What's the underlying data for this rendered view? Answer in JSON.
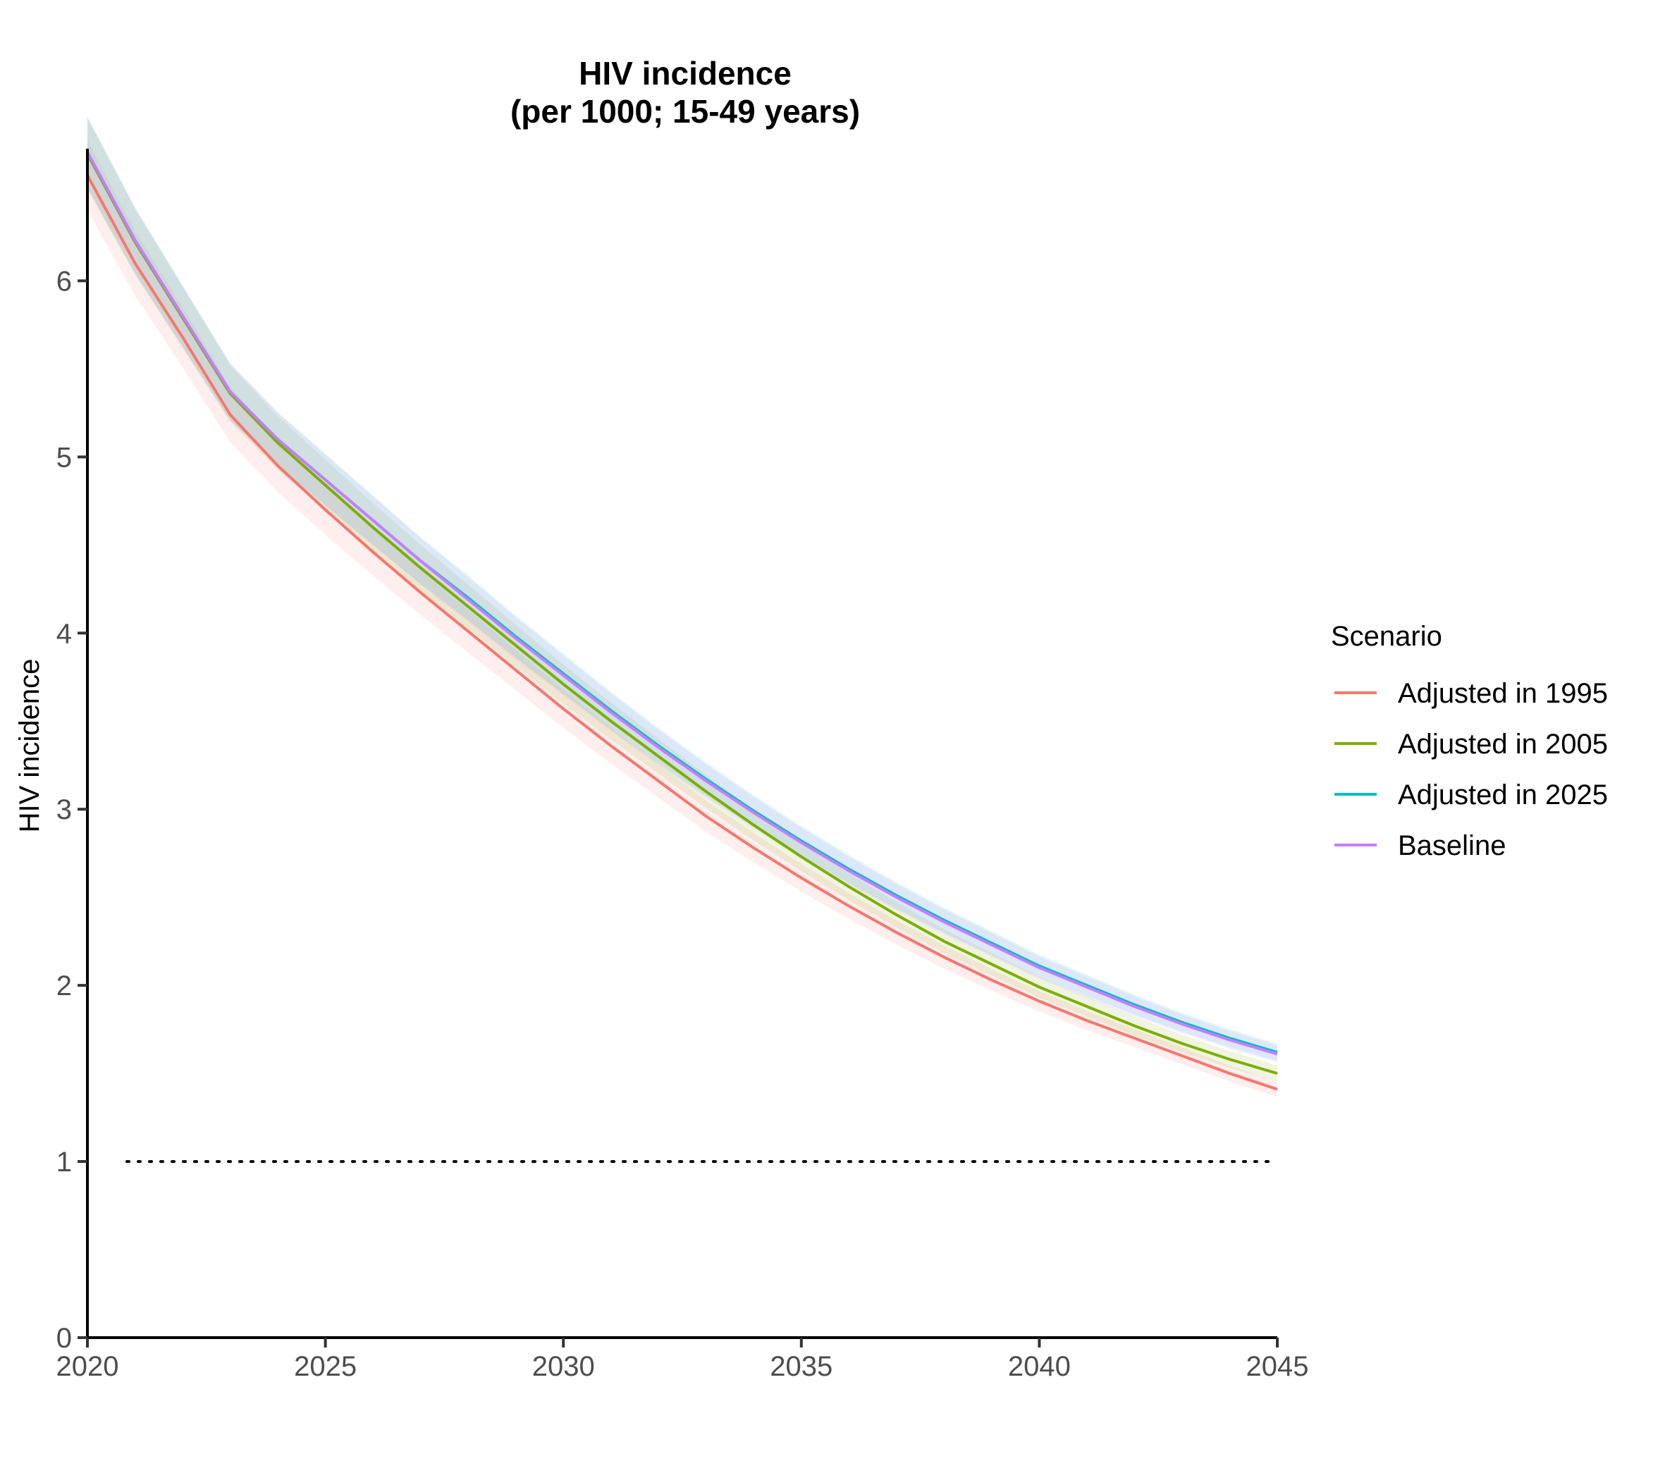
{
  "chart_data": {
    "type": "line",
    "title": "HIV incidence",
    "subtitle": "(per 1000; 15-49 years)",
    "xlabel": "",
    "ylabel": "HIV incidence",
    "xlim": [
      2020,
      2045
    ],
    "ylim": [
      0,
      6.75
    ],
    "x_ticks": [
      2020,
      2025,
      2030,
      2035,
      2040,
      2045
    ],
    "y_ticks": [
      0,
      1,
      2,
      3,
      4,
      5,
      6
    ],
    "grid": false,
    "reference_line": {
      "y": 1,
      "style": "dotted"
    },
    "legend": {
      "title": "Scenario",
      "position": "right"
    },
    "x": [
      2020,
      2021,
      2022,
      2023,
      2024,
      2025,
      2026,
      2027,
      2028,
      2029,
      2030,
      2031,
      2032,
      2033,
      2034,
      2035,
      2036,
      2037,
      2038,
      2039,
      2040,
      2041,
      2042,
      2043,
      2044,
      2045
    ],
    "series": [
      {
        "name": "Adjusted in 1995",
        "color": "#F8766D",
        "values": [
          6.6,
          6.1,
          5.68,
          5.24,
          4.95,
          4.7,
          4.46,
          4.23,
          4.01,
          3.79,
          3.57,
          3.36,
          3.16,
          2.96,
          2.78,
          2.61,
          2.45,
          2.3,
          2.16,
          2.03,
          1.91,
          1.8,
          1.7,
          1.6,
          1.5,
          1.41
        ]
      },
      {
        "name": "Adjusted in 2005",
        "color": "#7CAE00",
        "values": [
          6.72,
          6.22,
          5.79,
          5.36,
          5.08,
          4.84,
          4.6,
          4.37,
          4.15,
          3.93,
          3.71,
          3.5,
          3.3,
          3.1,
          2.91,
          2.73,
          2.56,
          2.4,
          2.25,
          2.12,
          1.99,
          1.88,
          1.77,
          1.67,
          1.58,
          1.5
        ]
      },
      {
        "name": "Adjusted in 2025",
        "color": "#00BFC4",
        "values": [
          6.73,
          6.23,
          5.8,
          5.37,
          5.1,
          4.87,
          4.64,
          4.41,
          4.2,
          3.98,
          3.77,
          3.56,
          3.36,
          3.17,
          2.99,
          2.82,
          2.66,
          2.51,
          2.37,
          2.24,
          2.11,
          2.0,
          1.89,
          1.79,
          1.7,
          1.62
        ]
      },
      {
        "name": "Baseline",
        "color": "#C77CFF",
        "values": [
          6.73,
          6.23,
          5.8,
          5.37,
          5.1,
          4.87,
          4.64,
          4.41,
          4.19,
          3.97,
          3.76,
          3.55,
          3.35,
          3.16,
          2.98,
          2.81,
          2.65,
          2.5,
          2.36,
          2.23,
          2.1,
          1.99,
          1.88,
          1.78,
          1.69,
          1.61
        ]
      }
    ]
  }
}
